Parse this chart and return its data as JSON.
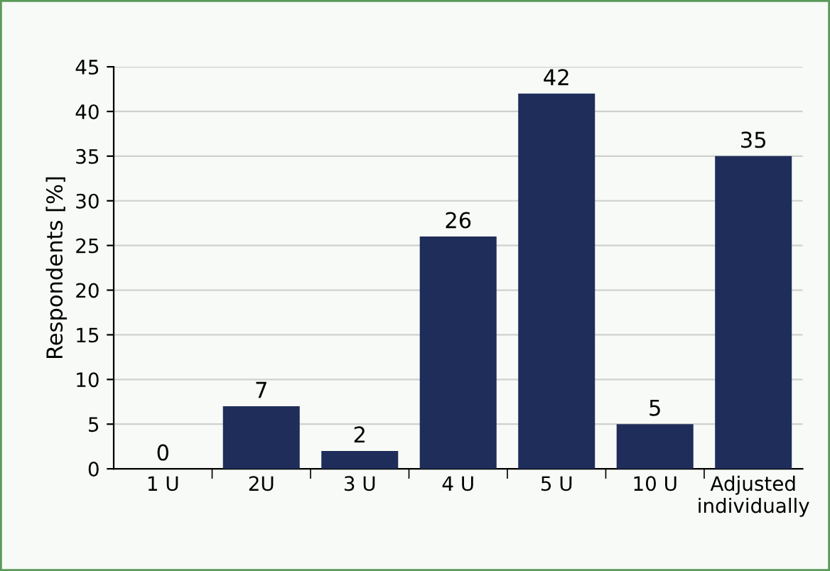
{
  "chart_data": {
    "type": "bar",
    "ylabel": "Respondents [%]",
    "categories": [
      "1 U",
      "2U",
      "3 U",
      "4 U",
      "5 U",
      "10 U",
      "Adjusted\nindividually"
    ],
    "values": [
      0,
      7,
      2,
      26,
      42,
      5,
      35
    ],
    "color": "#1f2d5a",
    "ylim": [
      0,
      45
    ],
    "yticks": [
      0,
      5,
      10,
      15,
      20,
      25,
      30,
      35,
      40,
      45
    ],
    "grid": "y",
    "data_labels": true
  }
}
